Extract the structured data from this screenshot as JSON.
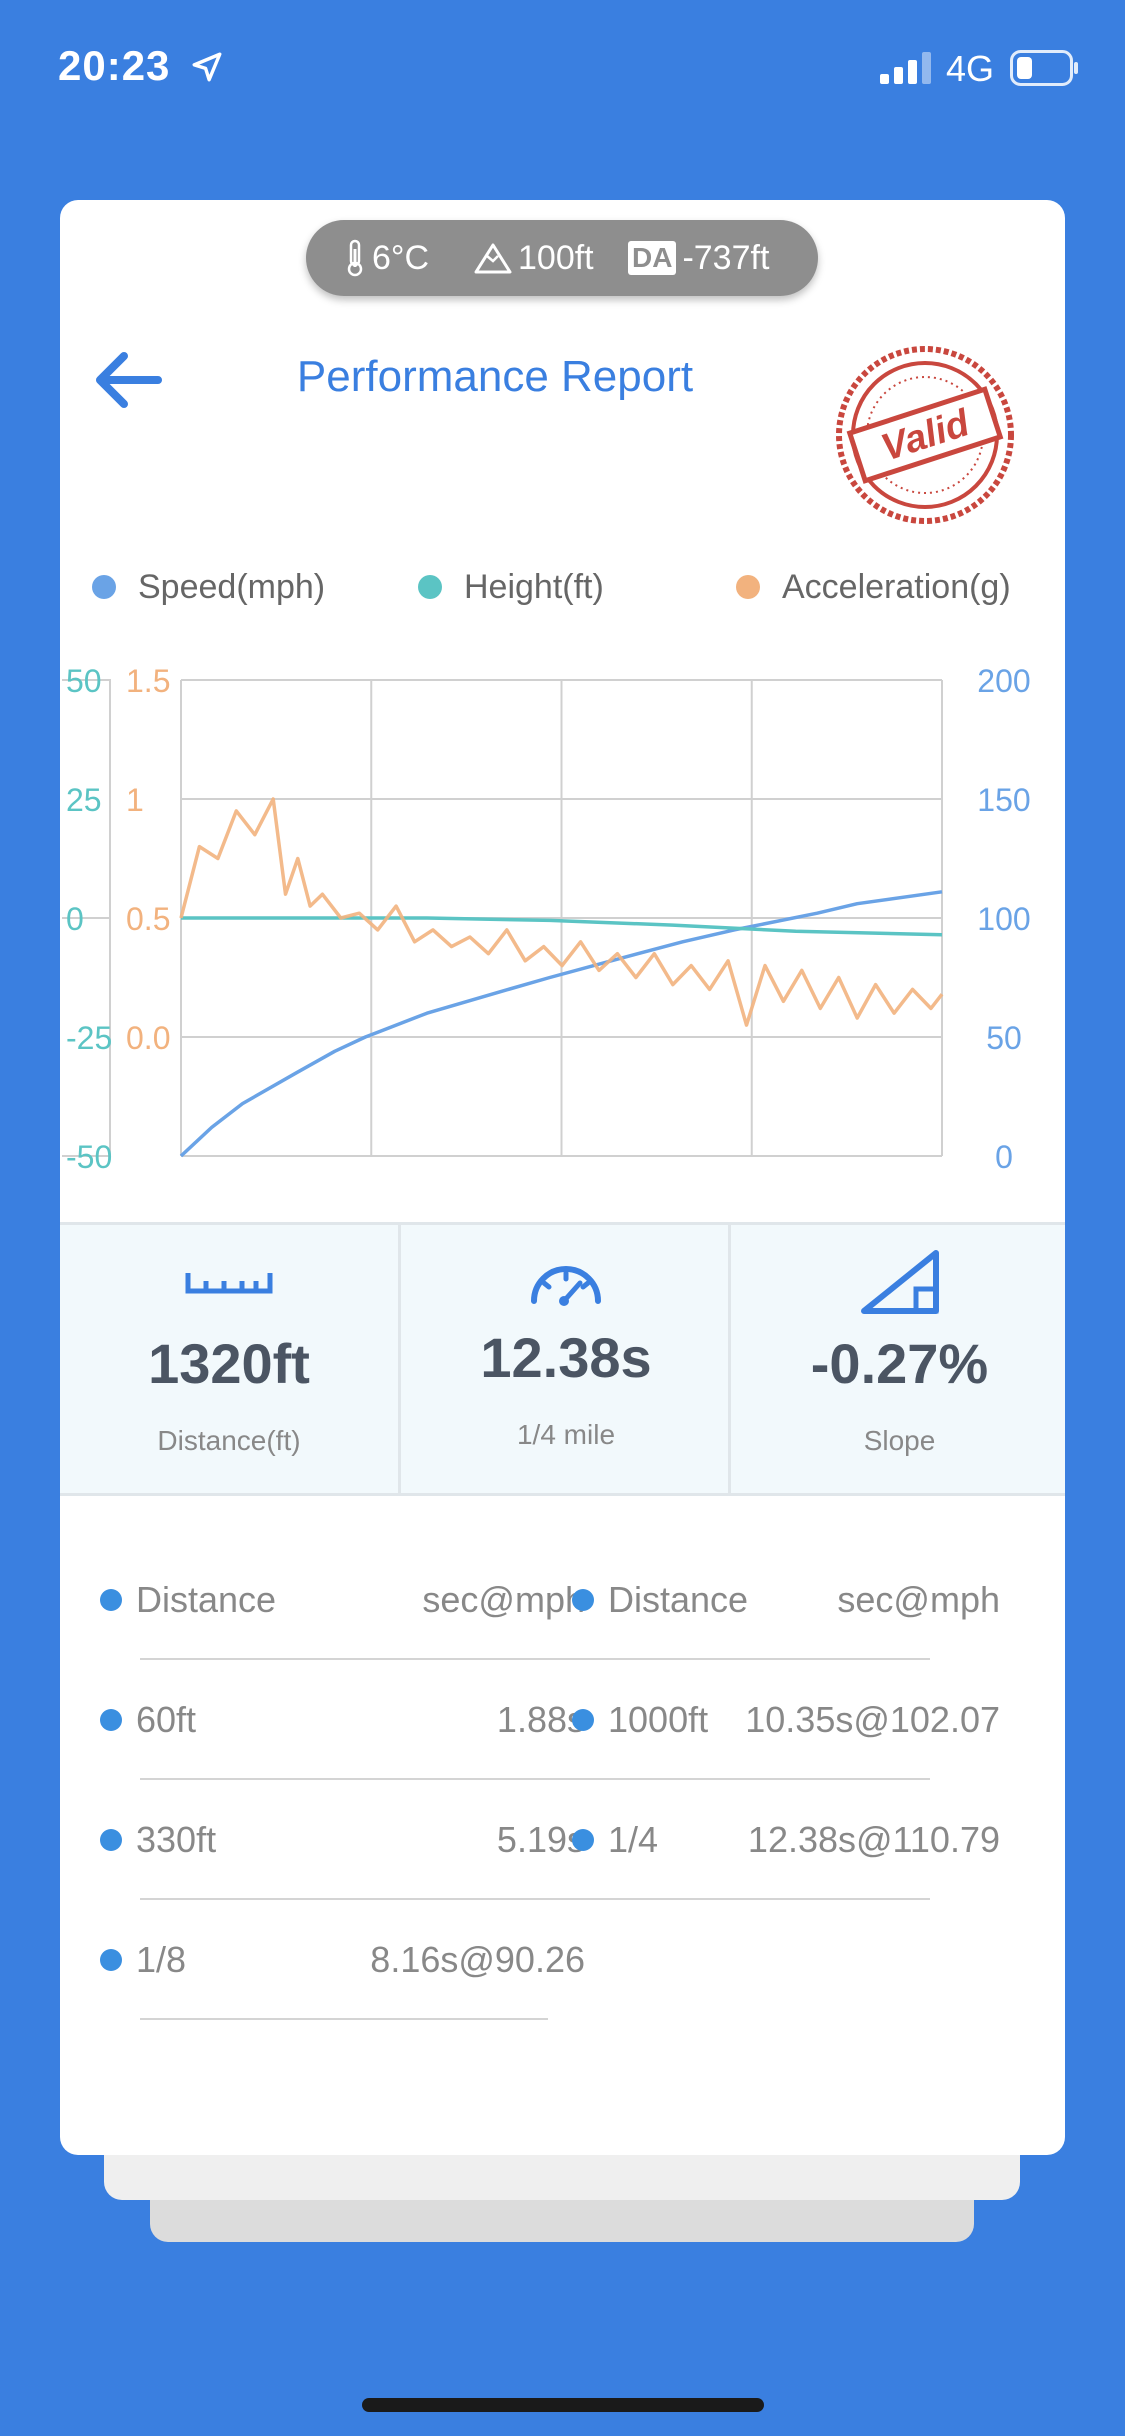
{
  "status": {
    "time": "20:23",
    "network": "4G"
  },
  "weather": {
    "temperature": "6°C",
    "altitude": "100ft",
    "da_badge": "DA",
    "density_altitude": "-737ft"
  },
  "header": {
    "title": "Performance Report",
    "stamp_text": "Valid"
  },
  "legend": [
    {
      "label": "Speed(mph)",
      "color": "#6aa3e6"
    },
    {
      "label": "Height(ft)",
      "color": "#5bc4c4"
    },
    {
      "label": "Acceleration(g)",
      "color": "#f2b27e"
    }
  ],
  "chart_data": {
    "type": "line",
    "axes": {
      "height_ft": {
        "ticks": [
          "50",
          "25",
          "0",
          "-25",
          "-50"
        ],
        "range": [
          -50,
          50
        ],
        "color": "#5bc4c4"
      },
      "acceleration_g": {
        "ticks": [
          "1.5",
          "1",
          "0.5",
          "0.0"
        ],
        "range": [
          -0.5,
          1.5
        ],
        "color": "#f2b27e"
      },
      "speed_mph": {
        "ticks": [
          "200",
          "150",
          "100",
          "50",
          "0"
        ],
        "range": [
          0,
          200
        ],
        "color": "#6aa3e6"
      }
    },
    "x_range": [
      0,
      12.38
    ],
    "grid": true,
    "series": [
      {
        "name": "Speed(mph)",
        "axis": "speed_mph",
        "color": "#6aa3e6",
        "x": [
          0,
          0.5,
          1,
          1.88,
          2.5,
          3,
          4,
          5.19,
          6,
          7,
          8.16,
          9,
          10.35,
          11,
          12.38
        ],
        "y": [
          0,
          12,
          22,
          35,
          44,
          50,
          60,
          69,
          75,
          82,
          90,
          95,
          102,
          106,
          111
        ]
      },
      {
        "name": "Height(ft)",
        "axis": "height_ft",
        "color": "#5bc4c4",
        "x": [
          0,
          2,
          4,
          6,
          8,
          10,
          12.38
        ],
        "y": [
          0,
          0,
          0,
          -0.5,
          -1.5,
          -2.8,
          -3.5
        ]
      },
      {
        "name": "Acceleration(g)",
        "axis": "acceleration_g",
        "color": "#f2b27e",
        "x": [
          0,
          0.3,
          0.6,
          0.9,
          1.2,
          1.5,
          1.7,
          1.9,
          2.1,
          2.3,
          2.6,
          2.9,
          3.2,
          3.5,
          3.8,
          4.1,
          4.4,
          4.7,
          5.0,
          5.3,
          5.6,
          5.9,
          6.2,
          6.5,
          6.8,
          7.1,
          7.4,
          7.7,
          8.0,
          8.3,
          8.6,
          8.9,
          9.2,
          9.5,
          9.8,
          10.1,
          10.4,
          10.7,
          11.0,
          11.3,
          11.6,
          11.9,
          12.2,
          12.38
        ],
        "y": [
          0.5,
          0.8,
          0.75,
          0.95,
          0.85,
          1.0,
          0.6,
          0.75,
          0.55,
          0.6,
          0.5,
          0.52,
          0.45,
          0.55,
          0.4,
          0.45,
          0.38,
          0.42,
          0.35,
          0.45,
          0.32,
          0.38,
          0.3,
          0.4,
          0.28,
          0.35,
          0.25,
          0.35,
          0.22,
          0.3,
          0.2,
          0.32,
          0.05,
          0.3,
          0.15,
          0.28,
          0.12,
          0.25,
          0.08,
          0.22,
          0.1,
          0.2,
          0.12,
          0.18
        ]
      }
    ]
  },
  "stats": [
    {
      "value": "1320ft",
      "label": "Distance(ft)",
      "icon": "ruler-icon"
    },
    {
      "value": "12.38s",
      "label": "1/4 mile",
      "icon": "speedometer-icon"
    },
    {
      "value": "-0.27%",
      "label": "Slope",
      "icon": "slope-icon"
    }
  ],
  "splits": {
    "headers": {
      "left_label": "Distance",
      "left_value": "sec@mph",
      "right_label": "Distance",
      "right_value": "sec@mph"
    },
    "rows": [
      {
        "left_label": "60ft",
        "left_value": "1.88s",
        "right_label": "1000ft",
        "right_value": "10.35s@102.07"
      },
      {
        "left_label": "330ft",
        "left_value": "5.19s",
        "right_label": "1/4",
        "right_value": "12.38s@110.79"
      },
      {
        "left_label": "1/8",
        "left_value": "8.16s@90.26",
        "right_label": null,
        "right_value": null
      }
    ]
  }
}
